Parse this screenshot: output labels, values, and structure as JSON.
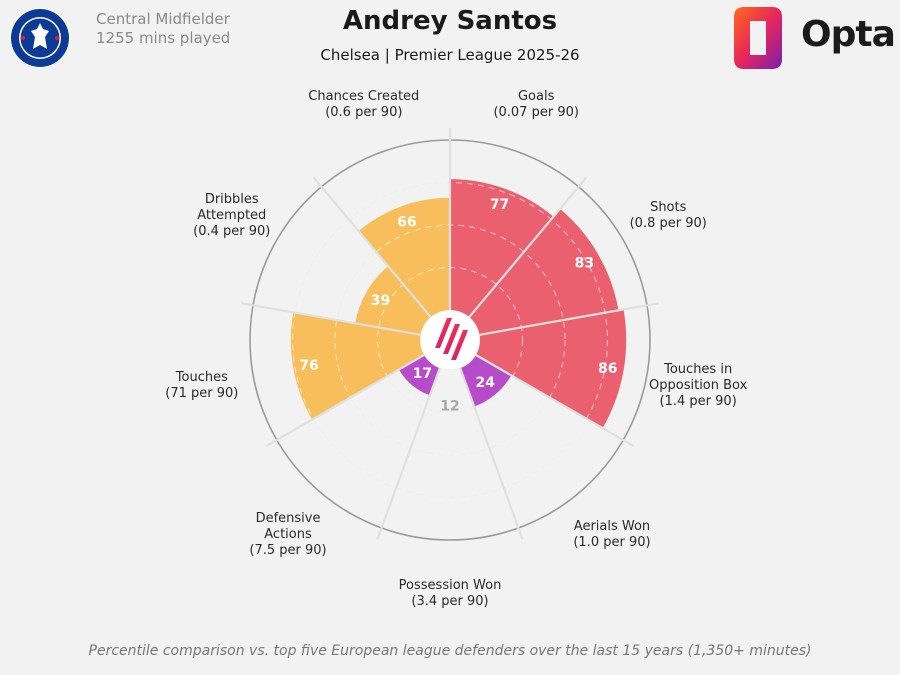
{
  "header": {
    "position": "Central Midfielder",
    "minutes": "1255 mins played",
    "player_name": "Andrey Santos",
    "subtitle": "Chelsea | Premier League 2025-26",
    "crest_text": "CHELSEA FOOTBALL CLUB",
    "brand": "Opta"
  },
  "footnote": "Percentile comparison vs. top five European league defenders over the last 15 years (1,350+ minutes)",
  "colors": {
    "attacking": "#e9505f",
    "possession": "#f7b84a",
    "defending": "#b03ac7",
    "background": "#f2f2f2"
  },
  "chart_data": {
    "type": "radar",
    "value_range": [
      0,
      100
    ],
    "metrics": [
      {
        "name": "Goals",
        "rate": "(0.07 per 90)",
        "value": 77,
        "group": "attacking"
      },
      {
        "name": "Shots",
        "rate": "(0.8 per 90)",
        "value": 83,
        "group": "attacking"
      },
      {
        "name": "Touches in Opposition Box",
        "name_lines": [
          "Touches in",
          "Opposition Box"
        ],
        "rate": "(1.4 per 90)",
        "value": 86,
        "group": "attacking"
      },
      {
        "name": "Aerials Won",
        "rate": "(1.0 per 90)",
        "value": 24,
        "group": "defending"
      },
      {
        "name": "Possession Won",
        "rate": "(3.4 per 90)",
        "value": 12,
        "group": "defending"
      },
      {
        "name": "Defensive Actions",
        "name_lines": [
          "Defensive",
          "Actions"
        ],
        "rate": "(7.5 per 90)",
        "value": 17,
        "group": "defending"
      },
      {
        "name": "Touches",
        "rate": "(71 per 90)",
        "value": 76,
        "group": "possession"
      },
      {
        "name": "Dribbles Attempted",
        "name_lines": [
          "Dribbles",
          "Attempted"
        ],
        "rate": "(0.4 per 90)",
        "value": 39,
        "group": "possession"
      },
      {
        "name": "Chances Created",
        "rate": "(0.6 per 90)",
        "value": 66,
        "group": "possession"
      }
    ]
  }
}
